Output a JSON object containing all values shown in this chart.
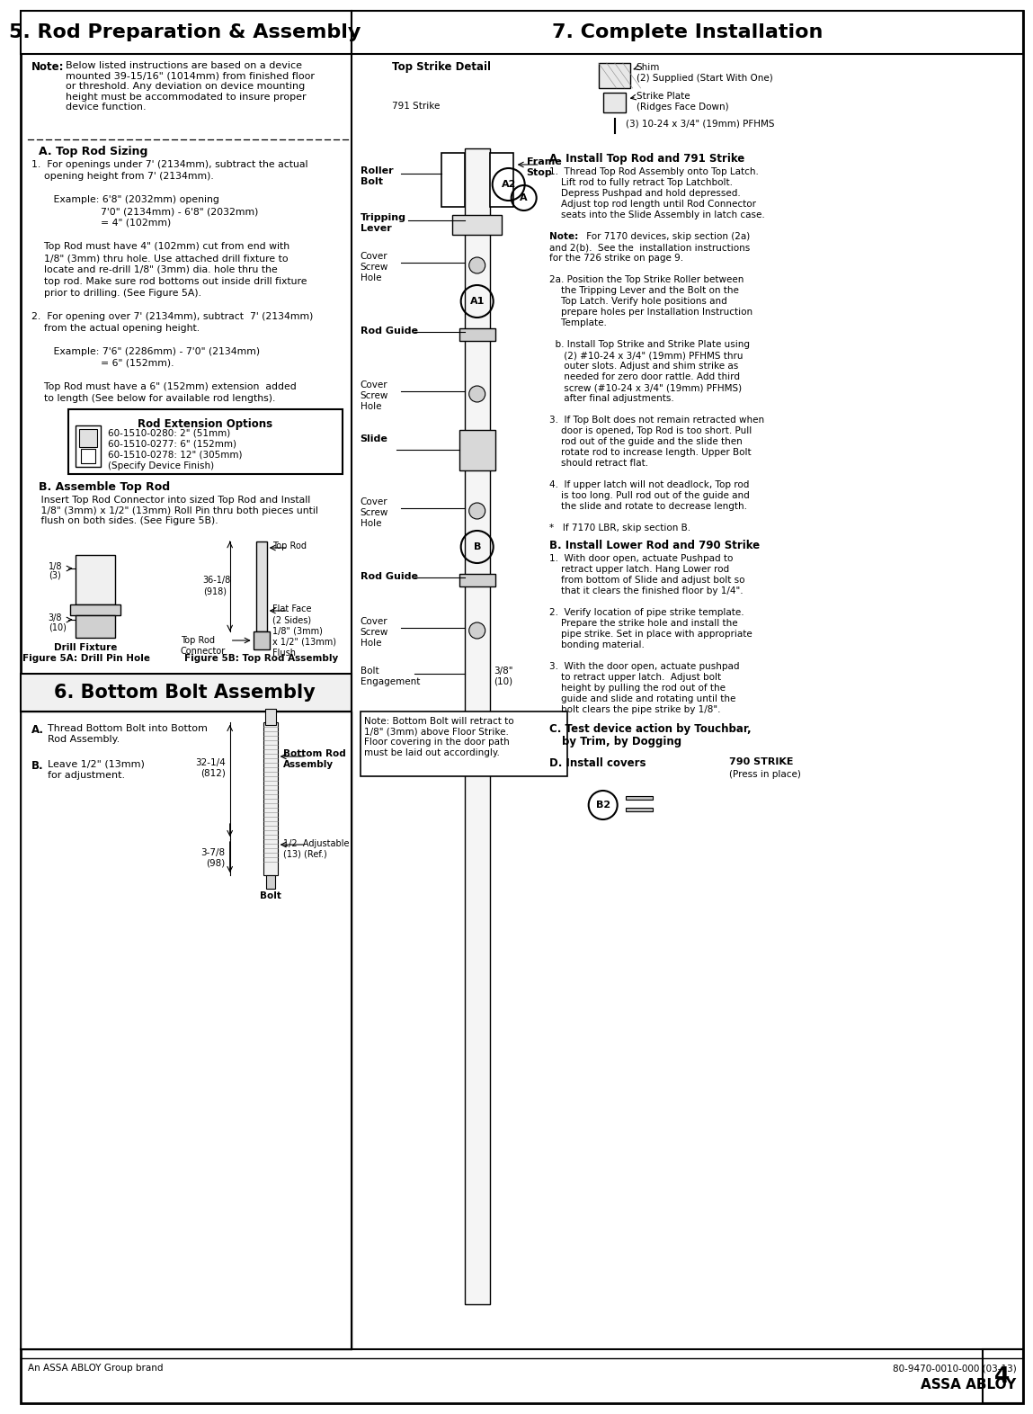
{
  "title_left": "5. Rod Preparation & Assembly",
  "title_right": "7. Complete Installation",
  "section6_title": "6. Bottom Bolt Assembly",
  "bg_color": "#ffffff",
  "footer_text_left": "An ASSA ABLOY Group brand",
  "footer_text_right": "80-9470-0010-000 (03-13)",
  "footer_brand": "ASSA ABLOY",
  "page_number": "4"
}
